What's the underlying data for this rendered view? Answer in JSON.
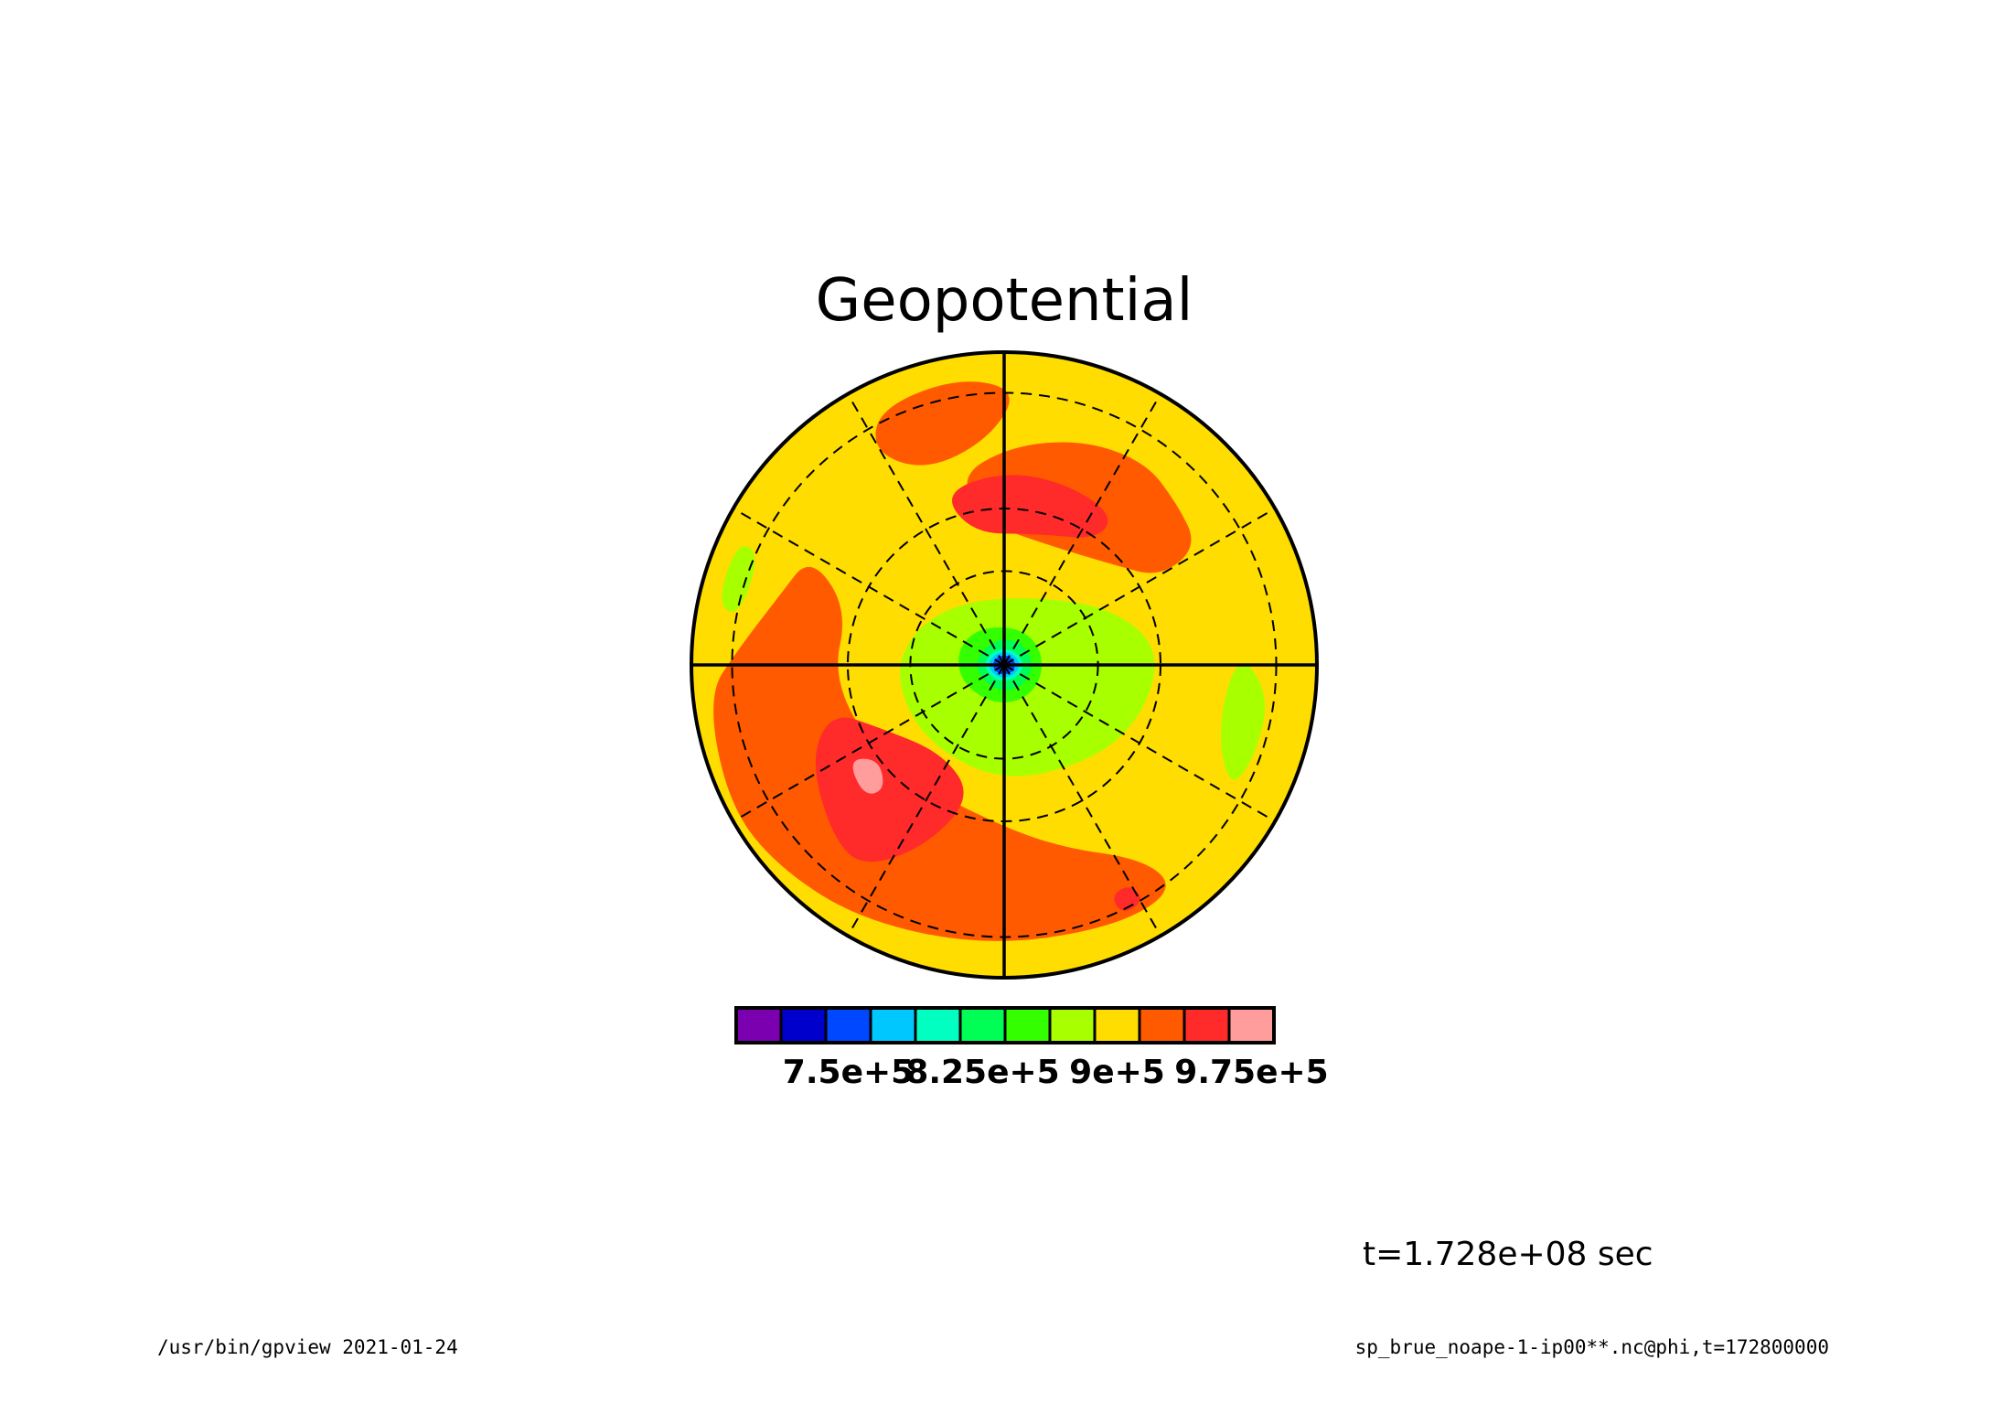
{
  "chart_data": {
    "type": "heatmap",
    "projection": "polar-stereographic",
    "title": "Geopotential",
    "colorbar": {
      "orientation": "horizontal",
      "tick_labels": [
        "7.5e+5",
        "8.25e+5",
        "9e+5",
        "9.75e+5"
      ],
      "tick_values": [
        750000,
        825000,
        900000,
        975000
      ],
      "levels": [
        675000,
        700000,
        725000,
        750000,
        775000,
        800000,
        825000,
        850000,
        875000,
        900000,
        925000,
        950000,
        975000,
        1000000
      ],
      "colors": [
        "#7a00b0",
        "#0000cc",
        "#0048ff",
        "#00c8ff",
        "#00ffc0",
        "#00ff55",
        "#33ff00",
        "#a8ff00",
        "#ffdd00",
        "#ff5a00",
        "#ff2a2a",
        "#ff9c9c"
      ]
    },
    "grid": true,
    "field": [
      {
        "level": 8,
        "blobs": [
          [
            [
              -0.92,
              -0.35
            ],
            [
              -0.8,
              -0.55
            ],
            [
              -0.65,
              -0.8
            ],
            [
              -0.4,
              -0.95
            ],
            [
              -0.05,
              -0.99
            ],
            [
              0.35,
              -0.95
            ],
            [
              0.65,
              -0.8
            ],
            [
              0.85,
              -0.55
            ],
            [
              0.92,
              -0.3
            ],
            [
              0.8,
              -0.2
            ],
            [
              0.55,
              -0.45
            ],
            [
              0.3,
              -0.62
            ],
            [
              0.05,
              -0.55
            ],
            [
              -0.3,
              -0.55
            ],
            [
              -0.55,
              -0.3
            ],
            [
              -0.7,
              -0.1
            ],
            [
              -0.8,
              -0.2
            ]
          ],
          [
            [
              -0.95,
              0.1
            ],
            [
              -0.92,
              0.4
            ],
            [
              -0.78,
              0.65
            ],
            [
              -0.55,
              0.85
            ],
            [
              -0.25,
              0.97
            ],
            [
              0.1,
              0.98
            ],
            [
              0.45,
              0.88
            ],
            [
              0.7,
              0.68
            ],
            [
              0.6,
              0.45
            ],
            [
              0.35,
              0.3
            ],
            [
              0.05,
              0.38
            ],
            [
              -0.3,
              0.35
            ],
            [
              -0.55,
              0.2
            ],
            [
              -0.8,
              0.05
            ]
          ],
          [
            [
              0.55,
              0.2
            ],
            [
              0.75,
              0.05
            ],
            [
              0.9,
              -0.1
            ],
            [
              0.95,
              -0.25
            ],
            [
              0.8,
              -0.3
            ],
            [
              0.55,
              -0.1
            ],
            [
              0.4,
              0.05
            ]
          ]
        ]
      },
      {
        "level": 9,
        "blobs": [
          [
            [
              -0.95,
              -0.1
            ],
            [
              -0.88,
              -0.45
            ],
            [
              -0.72,
              -0.65
            ],
            [
              -0.45,
              -0.82
            ],
            [
              -0.05,
              -0.9
            ],
            [
              0.35,
              -0.84
            ],
            [
              0.55,
              -0.72
            ],
            [
              0.45,
              -0.62
            ],
            [
              0.15,
              -0.58
            ],
            [
              -0.15,
              -0.45
            ],
            [
              -0.4,
              -0.3
            ],
            [
              -0.55,
              -0.05
            ],
            [
              -0.5,
              0.18
            ],
            [
              -0.62,
              0.35
            ],
            [
              -0.72,
              0.22
            ],
            [
              -0.85,
              0.05
            ]
          ],
          [
            [
              0.02,
              0.7
            ],
            [
              0.25,
              0.72
            ],
            [
              0.45,
              0.65
            ],
            [
              0.55,
              0.52
            ],
            [
              0.62,
              0.38
            ],
            [
              0.5,
              0.28
            ],
            [
              0.35,
              0.32
            ],
            [
              0.15,
              0.38
            ],
            [
              -0.05,
              0.45
            ],
            [
              -0.15,
              0.6
            ]
          ],
          [
            [
              -0.4,
              0.82
            ],
            [
              -0.15,
              0.92
            ],
            [
              0.05,
              0.88
            ],
            [
              -0.05,
              0.72
            ],
            [
              -0.25,
              0.62
            ],
            [
              -0.42,
              0.68
            ]
          ]
        ]
      },
      {
        "level": 10,
        "blobs": [
          [
            [
              -0.62,
              -0.3
            ],
            [
              -0.55,
              -0.55
            ],
            [
              -0.45,
              -0.65
            ],
            [
              -0.25,
              -0.58
            ],
            [
              -0.1,
              -0.42
            ],
            [
              -0.2,
              -0.28
            ],
            [
              -0.4,
              -0.2
            ],
            [
              -0.55,
              -0.15
            ]
          ],
          [
            [
              -0.2,
              0.55
            ],
            [
              0.0,
              0.62
            ],
            [
              0.2,
              0.58
            ],
            [
              0.35,
              0.48
            ],
            [
              0.3,
              0.4
            ],
            [
              0.1,
              0.42
            ],
            [
              -0.1,
              0.42
            ]
          ],
          [
            [
              0.38,
              -0.8
            ],
            [
              0.45,
              -0.75
            ],
            [
              0.4,
              -0.7
            ],
            [
              0.34,
              -0.74
            ]
          ]
        ]
      },
      {
        "level": 11,
        "blobs": [
          [
            [
              -0.5,
              -0.3
            ],
            [
              -0.45,
              -0.42
            ],
            [
              -0.38,
              -0.4
            ],
            [
              -0.4,
              -0.3
            ]
          ]
        ]
      },
      {
        "level": 7,
        "blobs": [
          [
            [
              -0.3,
              0.1
            ],
            [
              -0.15,
              0.2
            ],
            [
              0.1,
              0.22
            ],
            [
              0.35,
              0.18
            ],
            [
              0.5,
              0.05
            ],
            [
              0.45,
              -0.15
            ],
            [
              0.3,
              -0.3
            ],
            [
              0.0,
              -0.38
            ],
            [
              -0.25,
              -0.25
            ],
            [
              -0.35,
              -0.05
            ]
          ],
          [
            [
              0.75,
              0.05
            ],
            [
              0.85,
              -0.1
            ],
            [
              0.8,
              -0.3
            ],
            [
              0.72,
              -0.4
            ],
            [
              0.68,
              -0.2
            ]
          ],
          [
            [
              -0.92,
              0.2
            ],
            [
              -0.85,
              0.4
            ],
            [
              -0.78,
              0.35
            ],
            [
              -0.85,
              0.15
            ]
          ]
        ]
      },
      {
        "level": 6,
        "blobs": [
          [
            [
              -0.15,
              0.05
            ],
            [
              -0.08,
              0.12
            ],
            [
              0.05,
              0.12
            ],
            [
              0.12,
              0.05
            ],
            [
              0.12,
              -0.05
            ],
            [
              0.05,
              -0.12
            ],
            [
              -0.05,
              -0.12
            ],
            [
              -0.14,
              -0.05
            ]
          ]
        ]
      },
      {
        "level": 5,
        "blobs": [
          [
            [
              -0.1,
              0.0
            ],
            [
              -0.04,
              0.08
            ],
            [
              0.05,
              0.08
            ],
            [
              0.1,
              0.0
            ],
            [
              0.05,
              -0.08
            ],
            [
              -0.04,
              -0.08
            ]
          ]
        ]
      },
      {
        "level": 4,
        "blobs": [
          [
            [
              -0.07,
              0.0
            ],
            [
              -0.03,
              0.05
            ],
            [
              0.03,
              0.05
            ],
            [
              0.07,
              0.0
            ],
            [
              0.03,
              -0.05
            ],
            [
              -0.03,
              -0.05
            ]
          ]
        ]
      },
      {
        "level": 3,
        "blobs": [
          [
            [
              -0.055,
              0.0
            ],
            [
              -0.025,
              0.04
            ],
            [
              0.025,
              0.04
            ],
            [
              0.055,
              0.0
            ],
            [
              0.025,
              -0.04
            ],
            [
              -0.025,
              -0.04
            ]
          ]
        ]
      },
      {
        "level": 2,
        "blobs": [
          [
            [
              -0.04,
              0.0
            ],
            [
              -0.02,
              0.03
            ],
            [
              0.02,
              0.03
            ],
            [
              0.04,
              0.0
            ],
            [
              0.02,
              -0.03
            ],
            [
              -0.02,
              -0.03
            ]
          ]
        ]
      }
    ]
  },
  "annotations": {
    "time": "t=1.728e+08 sec",
    "footer_left": "/usr/bin/gpview  2021-01-24",
    "footer_right": "sp_brue_noape-1-ip00**.nc@phi,t=172800000"
  }
}
